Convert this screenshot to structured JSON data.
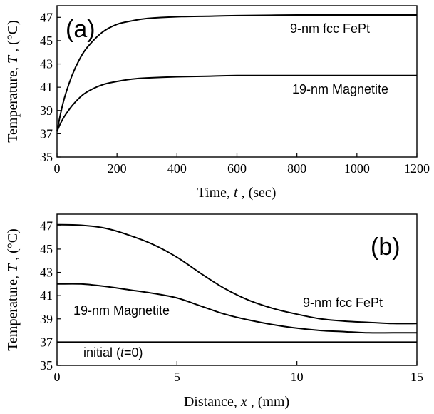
{
  "chart_data": [
    {
      "type": "line",
      "panel_label": "(a)",
      "xlabel": "Time, t , (sec)",
      "xlabel_parts": {
        "pre": "Time, ",
        "var": "t",
        "post": " , (sec)"
      },
      "ylabel": "Temperature, T , (°C)",
      "ylabel_parts": {
        "pre": "Temperature, ",
        "var": "T",
        "post": " , (°C)"
      },
      "xlim": [
        0,
        1200
      ],
      "ylim": [
        35,
        48
      ],
      "xticks": [
        0,
        200,
        400,
        600,
        800,
        1000,
        1200
      ],
      "yticks": [
        35,
        37,
        39,
        41,
        43,
        45,
        47
      ],
      "series": [
        {
          "name": "9-nm fcc FePt",
          "x": [
            0,
            10,
            25,
            50,
            75,
            100,
            150,
            200,
            250,
            300,
            400,
            500,
            600,
            800,
            1000,
            1200
          ],
          "y": [
            37.2,
            38.5,
            40.1,
            42.0,
            43.4,
            44.4,
            45.7,
            46.4,
            46.7,
            46.9,
            47.05,
            47.1,
            47.15,
            47.2,
            47.2,
            47.2
          ]
        },
        {
          "name": "19-nm Magnetite",
          "x": [
            0,
            10,
            25,
            50,
            75,
            100,
            150,
            200,
            250,
            300,
            400,
            500,
            600,
            800,
            1000,
            1200
          ],
          "y": [
            37.2,
            37.8,
            38.5,
            39.4,
            40.1,
            40.6,
            41.2,
            41.5,
            41.7,
            41.8,
            41.9,
            41.95,
            42.0,
            42.0,
            42.0,
            42.0
          ]
        }
      ]
    },
    {
      "type": "line",
      "panel_label": "(b)",
      "xlabel": "Distance, x , (mm)",
      "xlabel_parts": {
        "pre": "Distance, ",
        "var": "x",
        "post": " , (mm)"
      },
      "ylabel": "Temperature, T , (°C)",
      "ylabel_parts": {
        "pre": "Temperature, ",
        "var": "T",
        "post": " , (°C)"
      },
      "xlim": [
        0,
        15
      ],
      "ylim": [
        35,
        48
      ],
      "xticks": [
        0,
        5,
        10,
        15
      ],
      "yticks": [
        35,
        37,
        39,
        41,
        43,
        45,
        47
      ],
      "series": [
        {
          "name": "9-nm fcc FePt",
          "x": [
            0,
            1,
            2,
            3,
            4,
            5,
            6,
            7,
            8,
            9,
            10,
            11,
            12,
            13,
            14,
            15
          ],
          "y": [
            47.1,
            47.05,
            46.8,
            46.2,
            45.4,
            44.3,
            42.9,
            41.6,
            40.6,
            39.9,
            39.4,
            39.0,
            38.8,
            38.7,
            38.6,
            38.6
          ]
        },
        {
          "name": "19-nm Magnetite",
          "x": [
            0,
            1,
            2,
            3,
            4,
            5,
            6,
            7,
            8,
            9,
            10,
            11,
            12,
            13,
            14,
            15
          ],
          "y": [
            42.0,
            42.0,
            41.8,
            41.5,
            41.2,
            40.8,
            40.1,
            39.4,
            38.9,
            38.5,
            38.2,
            38.0,
            37.9,
            37.8,
            37.8,
            37.8
          ]
        },
        {
          "name": "initial (t=0)",
          "x": [
            0,
            15
          ],
          "y": [
            37.0,
            37.0
          ]
        }
      ]
    }
  ],
  "annotations": {
    "a": [
      {
        "text": "9-nm fcc FePt",
        "series": 0
      },
      {
        "text": "19-nm Magnetite",
        "series": 1
      }
    ],
    "b": {
      "fept": "9-nm fcc FePt",
      "magnetite": "19-nm Magnetite",
      "initial_pre": "initial (",
      "initial_var": "t",
      "initial_post": "=0)"
    }
  }
}
